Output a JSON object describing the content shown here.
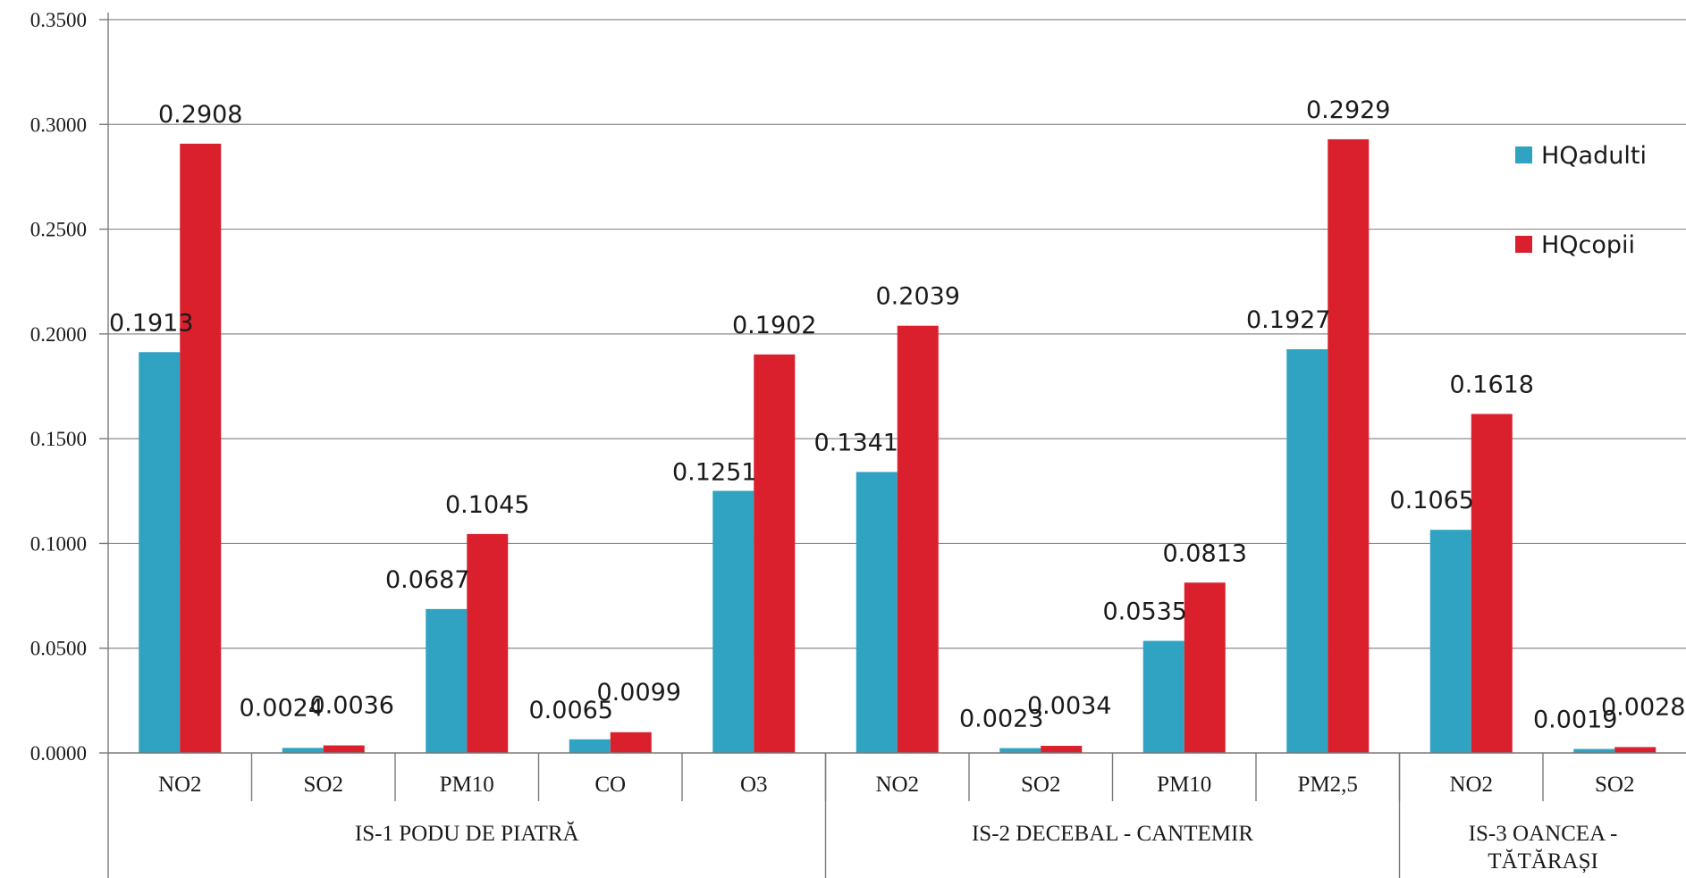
{
  "chart_data": {
    "type": "bar",
    "ylim": [
      0,
      0.35
    ],
    "yticks": [
      "0.0000",
      "0.0500",
      "0.1000",
      "0.1500",
      "0.2000",
      "0.2500",
      "0.3000",
      "0.3500"
    ],
    "grid": true,
    "legend_position": "right",
    "categories": [
      "NO2",
      "SO2",
      "PM10",
      "CO",
      "O3",
      "NO2",
      "SO2",
      "PM10",
      "PM2,5",
      "NO2",
      "SO2"
    ],
    "groups": [
      {
        "label": "IS-1 PODU DE PIATRĂ",
        "count": 5
      },
      {
        "label": "IS-2 DECEBAL - CANTEMIR",
        "count": 4
      },
      {
        "label_lines": [
          "IS-3 OANCEA -",
          "TĂTĂRAȘI"
        ],
        "count": 2
      }
    ],
    "series": [
      {
        "name": "HQadulti",
        "color": "#2fa3c1",
        "values": [
          0.1913,
          0.0024,
          0.0687,
          0.0065,
          0.1251,
          0.1341,
          0.0023,
          0.0535,
          0.1927,
          0.1065,
          0.0019
        ],
        "labels": [
          "0.1913",
          "0.0024",
          "0.0687",
          "0.0065",
          "0.1251",
          "0.1341",
          "0.0023",
          "0.0535",
          "0.1927",
          "0.1065",
          "0.0019"
        ]
      },
      {
        "name": "HQcopii",
        "color": "#d9202c",
        "values": [
          0.2908,
          0.0036,
          0.1045,
          0.0099,
          0.1902,
          0.2039,
          0.0034,
          0.0813,
          0.2929,
          0.1618,
          0.0028
        ],
        "labels": [
          "0.2908",
          "0.0036",
          "0.1045",
          "0.0099",
          "0.1902",
          "0.2039",
          "0.0034",
          "0.0813",
          "0.2929",
          "0.1618",
          "0.0028"
        ]
      }
    ]
  }
}
